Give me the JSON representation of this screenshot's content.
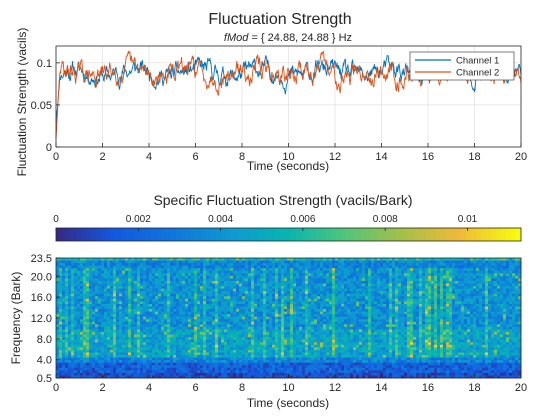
{
  "chart_data": [
    {
      "type": "line",
      "title": "Fluctuation Strength",
      "subtitle_prefix": "fMod",
      "subtitle_rest": " = { 24.88, 24.88 } Hz",
      "xlabel": "Time (seconds)",
      "ylabel": "Fluctuation Strength (vacils)",
      "xlim": [
        0,
        20
      ],
      "ylim": [
        0,
        0.12
      ],
      "xticks": [
        0,
        2,
        4,
        6,
        8,
        10,
        12,
        14,
        16,
        18,
        20
      ],
      "yticks": [
        0,
        0.05,
        0.1
      ],
      "ytick_labels": [
        "0",
        "0.05",
        "0.1"
      ],
      "grid": true,
      "legend_position": "top-right",
      "series": [
        {
          "name": "Channel 1",
          "color": "#0072BD",
          "mean": 0.088,
          "amplitude": 0.013,
          "seed": 11
        },
        {
          "name": "Channel 2",
          "color": "#D95319",
          "mean": 0.088,
          "amplitude": 0.014,
          "seed": 29
        }
      ]
    },
    {
      "type": "heatmap",
      "title": "Specific Fluctuation Strength (vacils/Bark)",
      "xlabel": "Time (seconds)",
      "ylabel": "Frequency (Bark)",
      "xlim": [
        0,
        20
      ],
      "ylim": [
        0.5,
        23.5
      ],
      "xticks": [
        0,
        2,
        4,
        6,
        8,
        10,
        12,
        14,
        16,
        18,
        20
      ],
      "yticks": [
        0.5,
        4.0,
        8.0,
        12.0,
        16.0,
        20.0,
        23.5
      ],
      "ytick_labels": [
        "0.5",
        "4.0",
        "8.0",
        "12.0",
        "16.0",
        "20.0",
        "23.5"
      ],
      "colorbar": {
        "position": "top",
        "range": [
          0,
          0.0113
        ],
        "ticks": [
          0,
          0.002,
          0.004,
          0.006,
          0.008,
          0.01
        ],
        "tick_labels": [
          "0",
          "0.002",
          "0.004",
          "0.006",
          "0.008",
          "0.01"
        ]
      },
      "colormap": "parula"
    }
  ]
}
